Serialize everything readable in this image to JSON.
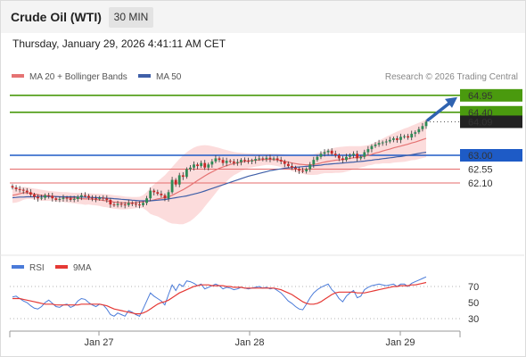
{
  "header": {
    "title": "Crude Oil (WTI)",
    "interval": "30 MIN",
    "timestamp": "Thursday, January 29, 2026 4:41:11 AM CET"
  },
  "chart_data": [
    {
      "type": "line",
      "panel": "price",
      "legend": [
        "MA 20 + Bollinger Bands",
        "MA 50"
      ],
      "credit": "Research © 2026 Trading Central",
      "x_ticks": [
        "Jan 27",
        "Jan 28",
        "Jan 29"
      ],
      "levels": [
        {
          "label": "64.95",
          "value": 64.95,
          "kind": "resistance",
          "color": "#4a9a0e"
        },
        {
          "label": "64.40",
          "value": 64.4,
          "kind": "resistance",
          "color": "#4a9a0e"
        },
        {
          "label": "63.00",
          "value": 63.0,
          "kind": "pivot",
          "color": "#1e5bc6"
        },
        {
          "label": "62.55",
          "value": 62.55,
          "kind": "support",
          "color": "#e56a6a"
        },
        {
          "label": "62.10",
          "value": 62.1,
          "kind": "support",
          "color": "#e56a6a"
        }
      ],
      "last_price": {
        "label": "64.09",
        "value": 64.09
      },
      "close": [
        61.95,
        61.9,
        61.88,
        61.85,
        61.8,
        61.72,
        61.65,
        61.6,
        61.62,
        61.7,
        61.68,
        61.6,
        61.55,
        61.58,
        61.62,
        61.6,
        61.55,
        61.58,
        61.65,
        61.7,
        61.68,
        61.62,
        61.6,
        61.58,
        61.62,
        61.6,
        61.55,
        61.4,
        61.38,
        61.42,
        61.4,
        61.38,
        61.45,
        61.42,
        61.4,
        61.38,
        61.45,
        61.6,
        61.85,
        61.8,
        61.75,
        61.7,
        61.6,
        61.8,
        62.2,
        62.05,
        62.35,
        62.3,
        62.55,
        62.6,
        62.7,
        62.65,
        62.75,
        62.6,
        62.7,
        62.8,
        62.9,
        62.85,
        62.75,
        62.82,
        62.8,
        62.75,
        62.78,
        62.85,
        62.82,
        62.8,
        62.83,
        62.88,
        62.9,
        62.88,
        62.92,
        62.88,
        62.9,
        62.85,
        62.8,
        62.72,
        62.65,
        62.6,
        62.55,
        62.5,
        62.48,
        62.55,
        62.7,
        62.85,
        62.95,
        63.05,
        63.1,
        63.15,
        63.05,
        63.0,
        62.9,
        62.85,
        62.95,
        63.0,
        63.05,
        62.9,
        62.95,
        63.1,
        63.2,
        63.3,
        63.35,
        63.4,
        63.42,
        63.45,
        63.5,
        63.55,
        63.5,
        63.6,
        63.62,
        63.58,
        63.7,
        63.75,
        63.85,
        63.95,
        64.09
      ],
      "ma20": [
        61.7,
        61.72,
        61.75,
        61.78,
        61.78,
        61.76,
        61.74,
        61.72,
        61.7,
        61.69,
        61.68,
        61.67,
        61.66,
        61.65,
        61.64,
        61.63,
        61.62,
        61.61,
        61.6,
        61.59,
        61.58,
        61.58,
        61.57,
        61.56,
        61.55,
        61.53,
        61.52,
        61.5,
        61.48,
        61.47,
        61.46,
        61.45,
        61.45,
        61.45,
        61.46,
        61.47,
        61.49,
        61.5,
        61.52,
        61.55,
        61.58,
        61.6,
        61.62,
        61.65,
        61.7,
        61.76,
        61.82,
        61.88,
        61.95,
        62.02,
        62.1,
        62.18,
        62.25,
        62.33,
        62.4,
        62.46,
        62.52,
        62.58,
        62.62,
        62.66,
        62.7,
        62.73,
        62.75,
        62.78,
        62.8,
        62.82,
        62.83,
        62.84,
        62.85,
        62.86,
        62.87,
        62.87,
        62.86,
        62.85,
        62.83,
        62.8,
        62.78,
        62.75,
        62.73,
        62.71,
        62.7,
        62.69,
        62.69,
        62.7,
        62.72,
        62.75,
        62.78,
        62.8,
        62.82,
        62.84,
        62.85,
        62.86,
        62.88,
        62.9,
        62.92,
        62.93,
        62.95,
        62.97,
        63.0,
        63.03,
        63.07,
        63.1,
        63.14,
        63.17,
        63.2,
        63.24,
        63.27,
        63.3,
        63.33,
        63.36,
        63.4,
        63.43,
        63.47,
        63.51,
        63.55
      ],
      "ma50": [
        61.62,
        61.63,
        61.64,
        61.64,
        61.65,
        61.65,
        61.65,
        61.66,
        61.66,
        61.66,
        61.66,
        61.66,
        61.66,
        61.65,
        61.65,
        61.65,
        61.65,
        61.65,
        61.64,
        61.64,
        61.64,
        61.63,
        61.63,
        61.62,
        61.62,
        61.61,
        61.6,
        61.6,
        61.59,
        61.58,
        61.57,
        61.56,
        61.55,
        61.54,
        61.53,
        61.52,
        61.52,
        61.52,
        61.52,
        61.53,
        61.54,
        61.55,
        61.56,
        61.58,
        61.6,
        61.62,
        61.64,
        61.66,
        61.68,
        61.71,
        61.74,
        61.77,
        61.8,
        61.84,
        61.88,
        61.92,
        61.96,
        62.0,
        62.04,
        62.08,
        62.12,
        62.16,
        62.2,
        62.24,
        62.28,
        62.32,
        62.35,
        62.38,
        62.41,
        62.44,
        62.47,
        62.5,
        62.52,
        62.54,
        62.56,
        62.58,
        62.59,
        62.6,
        62.61,
        62.62,
        62.63,
        62.64,
        62.65,
        62.66,
        62.67,
        62.68,
        62.7,
        62.71,
        62.72,
        62.73,
        62.74,
        62.75,
        62.76,
        62.77,
        62.78,
        62.79,
        62.8,
        62.81,
        62.83,
        62.84,
        62.86,
        62.87,
        62.89,
        62.9,
        62.92,
        62.93,
        62.95,
        62.96,
        62.98,
        63.0,
        63.02,
        63.04,
        63.06,
        63.08,
        63.1
      ],
      "bb_upper": [
        61.95,
        61.96,
        61.97,
        61.97,
        61.96,
        61.94,
        61.92,
        61.9,
        61.88,
        61.86,
        61.84,
        61.83,
        61.82,
        61.81,
        61.8,
        61.8,
        61.79,
        61.78,
        61.78,
        61.77,
        61.77,
        61.76,
        61.76,
        61.75,
        61.75,
        61.74,
        61.73,
        61.72,
        61.7,
        61.69,
        61.68,
        61.66,
        61.65,
        61.64,
        61.64,
        61.65,
        61.7,
        61.8,
        61.95,
        62.05,
        62.15,
        62.25,
        62.35,
        62.48,
        62.62,
        62.75,
        62.88,
        63.0,
        63.1,
        63.18,
        63.25,
        63.3,
        63.32,
        63.33,
        63.32,
        63.3,
        63.27,
        63.24,
        63.2,
        63.17,
        63.14,
        63.11,
        63.09,
        63.08,
        63.07,
        63.06,
        63.06,
        63.05,
        63.05,
        63.05,
        63.05,
        63.05,
        63.05,
        63.05,
        63.04,
        63.03,
        63.02,
        63.01,
        63.0,
        63.0,
        63.0,
        63.01,
        63.02,
        63.04,
        63.07,
        63.1,
        63.14,
        63.18,
        63.22,
        63.25,
        63.27,
        63.28,
        63.29,
        63.3,
        63.3,
        63.3,
        63.3,
        63.31,
        63.33,
        63.37,
        63.42,
        63.48,
        63.54,
        63.6,
        63.66,
        63.72,
        63.77,
        63.82,
        63.87,
        63.91,
        63.96,
        64.01,
        64.06,
        64.11,
        64.16
      ],
      "bb_lower": [
        61.45,
        61.46,
        61.5,
        61.55,
        61.58,
        61.58,
        61.56,
        61.54,
        61.52,
        61.52,
        61.52,
        61.51,
        61.5,
        61.49,
        61.48,
        61.46,
        61.45,
        61.44,
        61.42,
        61.41,
        61.39,
        61.4,
        61.38,
        61.37,
        61.35,
        61.32,
        61.31,
        61.28,
        61.26,
        61.25,
        61.24,
        61.24,
        61.25,
        61.26,
        61.28,
        61.29,
        61.28,
        61.2,
        61.09,
        61.05,
        61.01,
        60.95,
        60.89,
        60.82,
        60.78,
        60.77,
        60.76,
        60.76,
        60.8,
        60.86,
        60.95,
        61.06,
        61.18,
        61.33,
        61.48,
        61.62,
        61.77,
        61.92,
        62.04,
        62.15,
        62.26,
        62.35,
        62.41,
        62.48,
        62.53,
        62.58,
        62.6,
        62.63,
        62.65,
        62.67,
        62.69,
        62.69,
        62.67,
        62.65,
        62.62,
        62.57,
        62.54,
        62.49,
        62.46,
        62.42,
        62.4,
        62.37,
        62.36,
        62.36,
        62.37,
        62.4,
        62.42,
        62.42,
        62.42,
        62.43,
        62.43,
        62.44,
        62.47,
        62.5,
        62.54,
        62.56,
        62.6,
        62.63,
        62.67,
        62.69,
        62.72,
        62.72,
        62.74,
        62.74,
        62.74,
        62.76,
        62.77,
        62.78,
        62.79,
        62.81,
        62.84,
        62.85,
        62.88,
        62.91,
        62.94
      ],
      "forecast": {
        "from": 64.09,
        "to": 64.95
      }
    },
    {
      "type": "line",
      "panel": "rsi",
      "series_names": [
        "RSI",
        "9MA"
      ],
      "y_ticks": [
        70,
        50,
        30
      ],
      "rsi": [
        57,
        58,
        55,
        52,
        50,
        46,
        43,
        42,
        45,
        50,
        53,
        49,
        45,
        44,
        47,
        48,
        44,
        46,
        52,
        55,
        54,
        50,
        47,
        45,
        48,
        47,
        42,
        35,
        33,
        37,
        35,
        33,
        40,
        38,
        35,
        33,
        42,
        52,
        62,
        58,
        55,
        52,
        47,
        60,
        72,
        65,
        73,
        70,
        77,
        76,
        74,
        71,
        73,
        67,
        69,
        71,
        73,
        71,
        67,
        69,
        68,
        66,
        67,
        69,
        68,
        67,
        68,
        69,
        70,
        68,
        69,
        67,
        68,
        65,
        62,
        57,
        52,
        49,
        45,
        42,
        41,
        48,
        56,
        62,
        66,
        69,
        71,
        73,
        66,
        62,
        55,
        51,
        58,
        62,
        65,
        56,
        58,
        66,
        69,
        71,
        72,
        73,
        72,
        71,
        72,
        73,
        70,
        73,
        73,
        70,
        74,
        76,
        78,
        80,
        82
      ],
      "ma9": [
        55,
        55,
        55,
        54,
        53,
        52,
        51,
        50,
        49,
        48,
        48,
        48,
        47,
        47,
        47,
        47,
        47,
        47,
        47,
        48,
        48,
        48,
        48,
        48,
        48,
        47,
        46,
        44,
        42,
        41,
        40,
        39,
        38,
        37,
        36,
        36,
        37,
        39,
        42,
        45,
        48,
        50,
        51,
        53,
        56,
        59,
        62,
        64,
        66,
        68,
        70,
        71,
        72,
        72,
        72,
        71,
        71,
        71,
        71,
        70,
        70,
        69,
        69,
        69,
        68,
        68,
        68,
        68,
        68,
        68,
        68,
        68,
        68,
        67,
        66,
        64,
        62,
        60,
        57,
        54,
        51,
        49,
        48,
        48,
        49,
        51,
        54,
        57,
        60,
        62,
        63,
        63,
        63,
        63,
        63,
        62,
        62,
        62,
        63,
        64,
        65,
        66,
        67,
        68,
        69,
        70,
        70,
        71,
        71,
        71,
        72,
        72,
        73,
        74,
        75
      ]
    }
  ],
  "colors": {
    "resistance": "#4a9a0e",
    "pivot": "#1e5bc6",
    "support": "#e56a6a",
    "candle_up": "#2e8b57",
    "candle_down": "#c62828",
    "ma20": "#e57373",
    "ma50": "#3f5fa8",
    "band_fill": "#fbd6d6",
    "rsi": "#4a7bd9",
    "ma9": "#e53935",
    "forecast_arrow": "#2f63b0",
    "last_price_bg": "#222222"
  }
}
